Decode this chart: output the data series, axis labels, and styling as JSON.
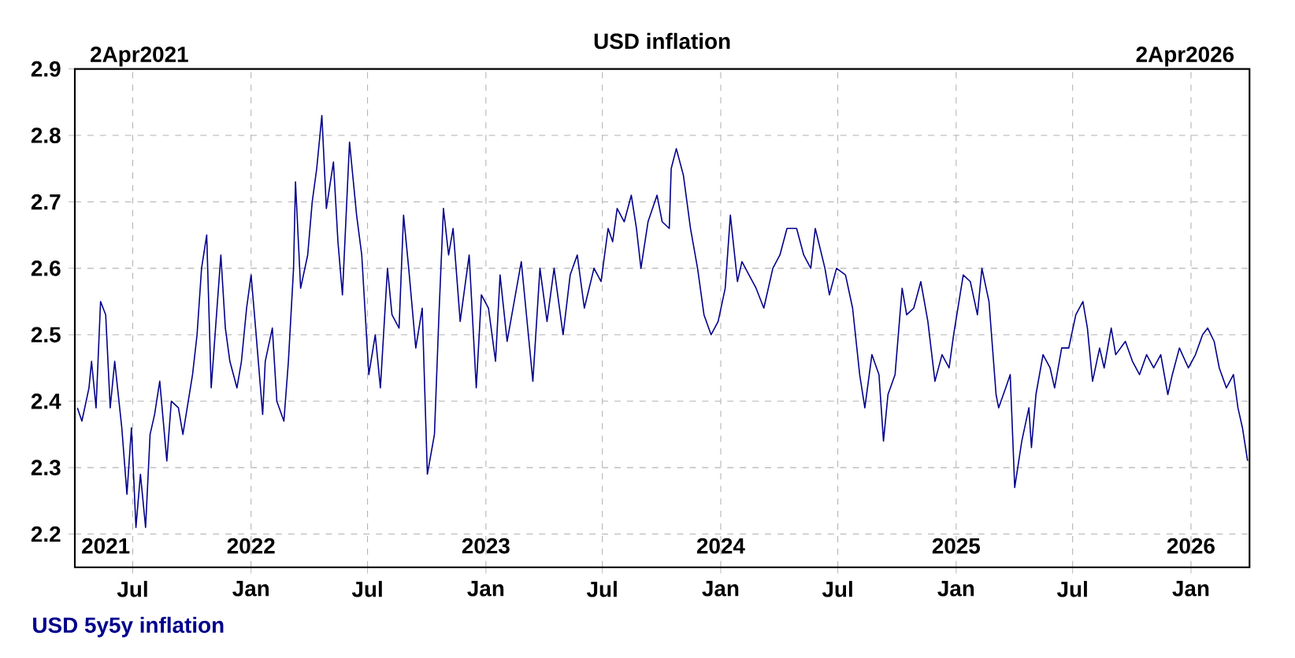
{
  "chart_data": {
    "type": "line",
    "title": "USD inflation",
    "xlim": [
      "2021-04-02",
      "2026-04-02"
    ],
    "ylim": [
      2.15,
      2.9
    ],
    "xticks": [
      {
        "value": "2021-07-01",
        "label": "Jul"
      },
      {
        "value": "2022-01-01",
        "label": "Jan"
      },
      {
        "value": "2022-07-01",
        "label": "Jul"
      },
      {
        "value": "2023-01-01",
        "label": "Jan"
      },
      {
        "value": "2023-07-01",
        "label": "Jul"
      },
      {
        "value": "2024-01-01",
        "label": "Jan"
      },
      {
        "value": "2024-07-01",
        "label": "Jul"
      },
      {
        "value": "2025-01-01",
        "label": "Jan"
      },
      {
        "value": "2025-07-01",
        "label": "Jul"
      },
      {
        "value": "2026-01-01",
        "label": "Jan"
      }
    ],
    "x2lim": [
      "2021-04-02",
      "2026-04-02"
    ],
    "x2ticks": [
      {
        "value": "2021-05-20",
        "label": "2021"
      },
      {
        "value": "2022-01-01",
        "label": "2022"
      },
      {
        "value": "2023-01-01",
        "label": "2023"
      },
      {
        "value": "2024-01-01",
        "label": "2024"
      },
      {
        "value": "2025-01-01",
        "label": "2025"
      },
      {
        "value": "2026-01-01",
        "label": "2026"
      }
    ],
    "yticks": [
      2.2,
      2.3,
      2.4,
      2.5,
      2.6,
      2.7,
      2.8,
      2.9
    ],
    "grid": true,
    "legend": "bottom left",
    "annotations": [
      "2Apr2021",
      "2Apr2026"
    ],
    "series": [
      {
        "name": "USD 5y5y inflation",
        "color": "#00008b",
        "x": [
          "2021-04-06",
          "2021-04-13",
          "2021-04-24",
          "2021-04-28",
          "2021-05-05",
          "2021-05-12",
          "2021-05-20",
          "2021-05-27",
          "2021-06-03",
          "2021-06-14",
          "2021-06-22",
          "2021-06-29",
          "2021-07-06",
          "2021-07-13",
          "2021-07-21",
          "2021-07-28",
          "2021-08-04",
          "2021-08-12",
          "2021-08-23",
          "2021-08-30",
          "2021-09-10",
          "2021-09-17",
          "2021-10-02",
          "2021-10-09",
          "2021-10-16",
          "2021-10-24",
          "2021-10-31",
          "2021-11-15",
          "2021-11-22",
          "2021-11-29",
          "2021-12-10",
          "2021-12-17",
          "2021-12-25",
          "2022-01-01",
          "2022-01-08",
          "2022-01-19",
          "2022-01-23",
          "2022-02-03",
          "2022-02-10",
          "2022-02-21",
          "2022-02-28",
          "2022-03-08",
          "2022-03-11",
          "2022-03-19",
          "2022-03-30",
          "2022-04-06",
          "2022-04-13",
          "2022-04-21",
          "2022-04-28",
          "2022-05-09",
          "2022-05-16",
          "2022-05-23",
          "2022-06-03",
          "2022-06-14",
          "2022-06-22",
          "2022-07-03",
          "2022-07-13",
          "2022-07-21",
          "2022-08-01",
          "2022-08-08",
          "2022-08-19",
          "2022-08-26",
          "2022-09-03",
          "2022-09-14",
          "2022-09-24",
          "2022-10-02",
          "2022-10-13",
          "2022-10-20",
          "2022-10-27",
          "2022-11-04",
          "2022-11-11",
          "2022-11-22",
          "2022-12-06",
          "2022-12-17",
          "2022-12-25",
          "2023-01-05",
          "2023-01-16",
          "2023-01-23",
          "2023-02-03",
          "2023-02-25",
          "2023-03-08",
          "2023-03-15",
          "2023-03-26",
          "2023-04-06",
          "2023-04-17",
          "2023-05-01",
          "2023-05-12",
          "2023-05-23",
          "2023-06-03",
          "2023-06-18",
          "2023-06-29",
          "2023-07-10",
          "2023-07-17",
          "2023-07-24",
          "2023-08-04",
          "2023-08-15",
          "2023-08-23",
          "2023-08-30",
          "2023-09-10",
          "2023-09-24",
          "2023-10-02",
          "2023-10-13",
          "2023-10-16",
          "2023-10-24",
          "2023-11-04",
          "2023-11-15",
          "2023-11-26",
          "2023-12-06",
          "2023-12-17",
          "2023-12-28",
          "2024-01-08",
          "2024-01-16",
          "2024-01-27",
          "2024-02-03",
          "2024-02-14",
          "2024-02-25",
          "2024-03-08",
          "2024-03-22",
          "2024-04-02",
          "2024-04-13",
          "2024-04-28",
          "2024-05-09",
          "2024-05-20",
          "2024-05-27",
          "2024-06-11",
          "2024-06-18",
          "2024-06-29",
          "2024-07-13",
          "2024-07-24",
          "2024-08-04",
          "2024-08-12",
          "2024-08-23",
          "2024-09-03",
          "2024-09-10",
          "2024-09-17",
          "2024-09-28",
          "2024-10-09",
          "2024-10-16",
          "2024-10-27",
          "2024-11-07",
          "2024-11-18",
          "2024-11-29",
          "2024-12-10",
          "2024-12-21",
          "2024-12-28",
          "2025-01-12",
          "2025-01-23",
          "2025-02-03",
          "2025-02-10",
          "2025-02-21",
          "2025-03-04",
          "2025-03-08",
          "2025-03-19",
          "2025-03-26",
          "2025-04-02",
          "2025-04-13",
          "2025-04-24",
          "2025-04-28",
          "2025-05-05",
          "2025-05-16",
          "2025-05-27",
          "2025-06-03",
          "2025-06-14",
          "2025-06-25",
          "2025-07-06",
          "2025-07-17",
          "2025-07-24",
          "2025-08-01",
          "2025-08-12",
          "2025-08-19",
          "2025-08-30",
          "2025-09-06",
          "2025-09-21",
          "2025-10-02",
          "2025-10-13",
          "2025-10-24",
          "2025-11-04",
          "2025-11-15",
          "2025-11-26",
          "2025-12-03",
          "2025-12-14",
          "2025-12-28",
          "2026-01-08",
          "2026-01-19",
          "2026-01-27",
          "2026-02-06",
          "2026-02-14",
          "2026-02-25",
          "2026-03-08",
          "2026-03-15",
          "2026-03-22",
          "2026-03-30"
        ],
        "values": [
          2.39,
          2.37,
          2.42,
          2.46,
          2.39,
          2.55,
          2.53,
          2.39,
          2.46,
          2.36,
          2.26,
          2.36,
          2.21,
          2.29,
          2.21,
          2.35,
          2.38,
          2.43,
          2.31,
          2.4,
          2.39,
          2.35,
          2.44,
          2.5,
          2.6,
          2.65,
          2.42,
          2.62,
          2.51,
          2.46,
          2.42,
          2.46,
          2.54,
          2.59,
          2.51,
          2.38,
          2.46,
          2.51,
          2.4,
          2.37,
          2.46,
          2.6,
          2.73,
          2.57,
          2.62,
          2.7,
          2.75,
          2.83,
          2.69,
          2.76,
          2.64,
          2.56,
          2.79,
          2.68,
          2.62,
          2.44,
          2.5,
          2.42,
          2.6,
          2.53,
          2.51,
          2.68,
          2.6,
          2.48,
          2.54,
          2.29,
          2.35,
          2.53,
          2.69,
          2.62,
          2.66,
          2.52,
          2.62,
          2.42,
          2.56,
          2.54,
          2.46,
          2.59,
          2.49,
          2.61,
          2.5,
          2.43,
          2.6,
          2.52,
          2.6,
          2.5,
          2.59,
          2.62,
          2.54,
          2.6,
          2.58,
          2.66,
          2.64,
          2.69,
          2.67,
          2.71,
          2.66,
          2.6,
          2.67,
          2.71,
          2.67,
          2.66,
          2.75,
          2.78,
          2.74,
          2.66,
          2.6,
          2.53,
          2.5,
          2.52,
          2.57,
          2.68,
          2.58,
          2.61,
          2.59,
          2.57,
          2.54,
          2.6,
          2.62,
          2.66,
          2.66,
          2.62,
          2.6,
          2.66,
          2.6,
          2.56,
          2.6,
          2.59,
          2.54,
          2.44,
          2.39,
          2.47,
          2.44,
          2.34,
          2.41,
          2.44,
          2.57,
          2.53,
          2.54,
          2.58,
          2.52,
          2.43,
          2.47,
          2.45,
          2.5,
          2.59,
          2.58,
          2.53,
          2.6,
          2.55,
          2.41,
          2.39,
          2.42,
          2.44,
          2.27,
          2.34,
          2.39,
          2.33,
          2.41,
          2.47,
          2.45,
          2.42,
          2.48,
          2.48,
          2.53,
          2.55,
          2.51,
          2.43,
          2.48,
          2.45,
          2.51,
          2.47,
          2.49,
          2.46,
          2.44,
          2.47,
          2.45,
          2.47,
          2.41,
          2.44,
          2.48,
          2.45,
          2.47,
          2.5,
          2.51,
          2.49,
          2.45,
          2.42,
          2.44,
          2.39,
          2.36,
          2.31
        ]
      }
    ]
  }
}
